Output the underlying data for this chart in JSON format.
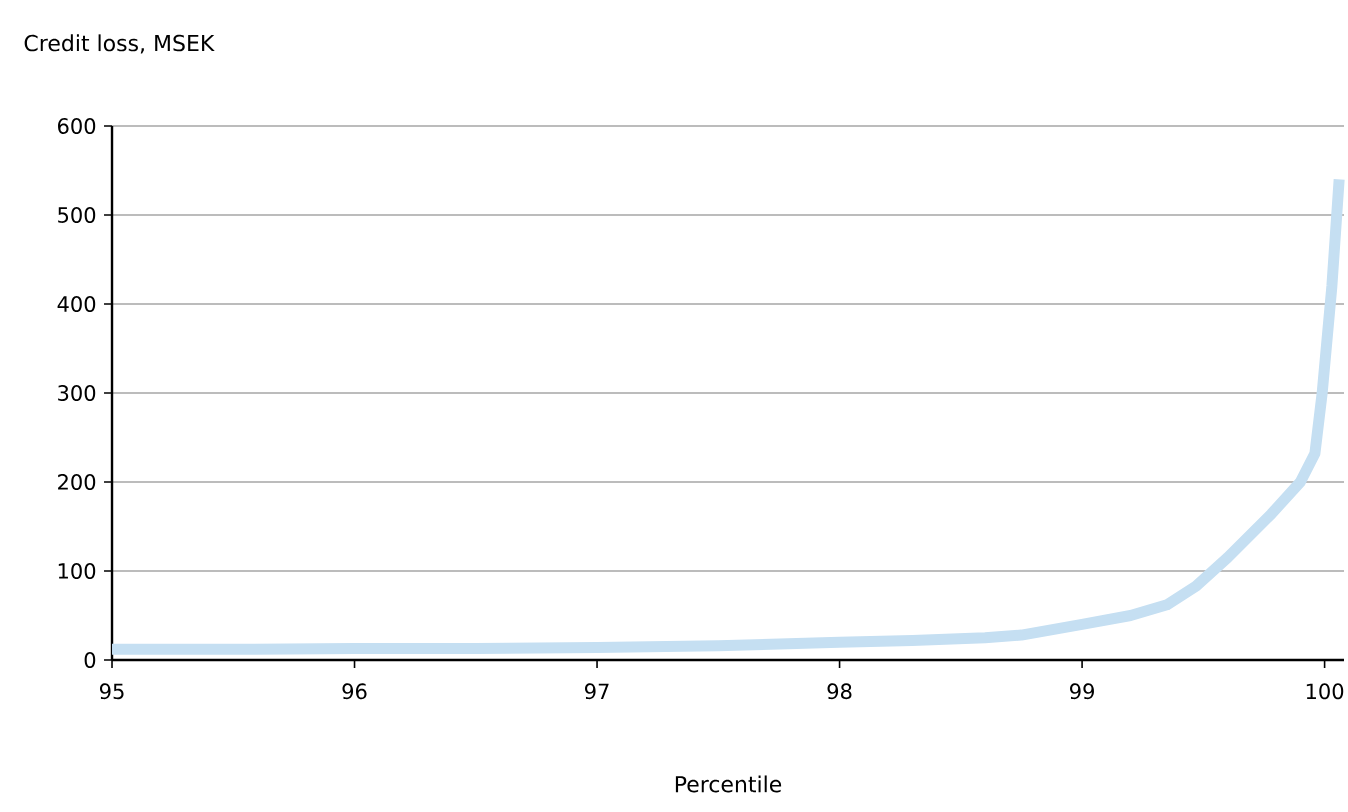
{
  "chart_data": {
    "type": "line",
    "ylabel": "Credit loss, MSEK",
    "xlabel": "Percentile",
    "series": [
      {
        "color": "#c5dff2",
        "x": [
          95,
          95.5,
          96,
          96.5,
          97,
          97.5,
          98,
          98.3,
          98.6,
          98.75,
          99,
          99.2,
          99.35,
          99.47,
          99.6,
          99.78,
          99.9,
          99.96,
          99.99,
          100.03,
          100.06
        ],
        "values": [
          12,
          12,
          13,
          13,
          14,
          16,
          20,
          22,
          25,
          28,
          40,
          50,
          62,
          83,
          115,
          164,
          200,
          232,
          300,
          420,
          540
        ]
      }
    ],
    "xlim": [
      95,
      100.08
    ],
    "ylim": [
      0,
      600
    ],
    "xticks": [
      95,
      96,
      97,
      98,
      99,
      100
    ],
    "yticks": [
      0,
      100,
      200,
      300,
      400,
      500,
      600
    ],
    "grid": "y",
    "marker": "none",
    "line_style": "solid"
  }
}
